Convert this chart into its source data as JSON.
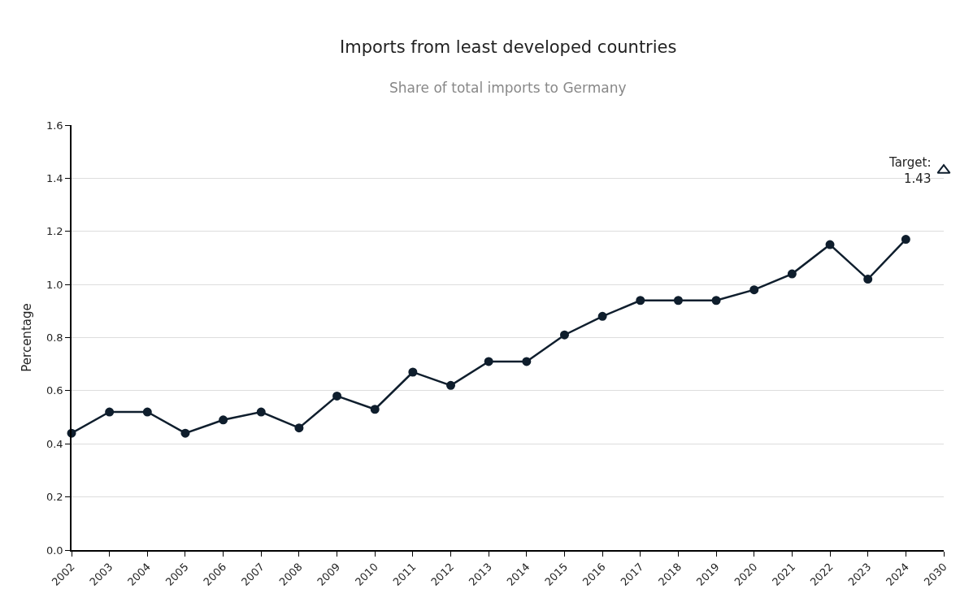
{
  "chart_data": {
    "type": "line",
    "title": "Imports from least developed countries",
    "subtitle": "Share of total imports to Germany",
    "ylabel": "Percentage",
    "categories": [
      "2002",
      "2003",
      "2004",
      "2005",
      "2006",
      "2007",
      "2008",
      "2009",
      "2010",
      "2011",
      "2012",
      "2013",
      "2014",
      "2015",
      "2016",
      "2017",
      "2018",
      "2019",
      "2020",
      "2021",
      "2022",
      "2023",
      "2024",
      "2030"
    ],
    "series": [
      {
        "color": "#0f1e2d",
        "marker": "circle",
        "values": [
          0.44,
          0.52,
          0.52,
          0.44,
          0.49,
          0.52,
          0.46,
          0.58,
          0.53,
          0.67,
          0.62,
          0.71,
          0.71,
          0.81,
          0.88,
          0.94,
          0.94,
          0.94,
          0.98,
          1.04,
          1.15,
          1.02,
          1.17,
          null
        ]
      },
      {
        "type": "scatter",
        "color": "#0f1e2d",
        "marker": "triangle",
        "values": [
          null,
          null,
          null,
          null,
          null,
          null,
          null,
          null,
          null,
          null,
          null,
          null,
          null,
          null,
          null,
          null,
          null,
          null,
          null,
          null,
          null,
          null,
          null,
          1.43
        ]
      }
    ],
    "annotations": [
      {
        "text": "Target:\n1.43",
        "x": "2030",
        "y": 1.43
      }
    ],
    "ylim": [
      0,
      1.6
    ],
    "yticks": [
      {
        "value": 0,
        "label": "0.0"
      },
      0.2,
      0.4,
      0.6,
      0.8,
      {
        "value": 1,
        "label": "1.0"
      },
      1.2,
      1.4,
      1.6
    ],
    "grid": "y",
    "line_style": "solid"
  }
}
